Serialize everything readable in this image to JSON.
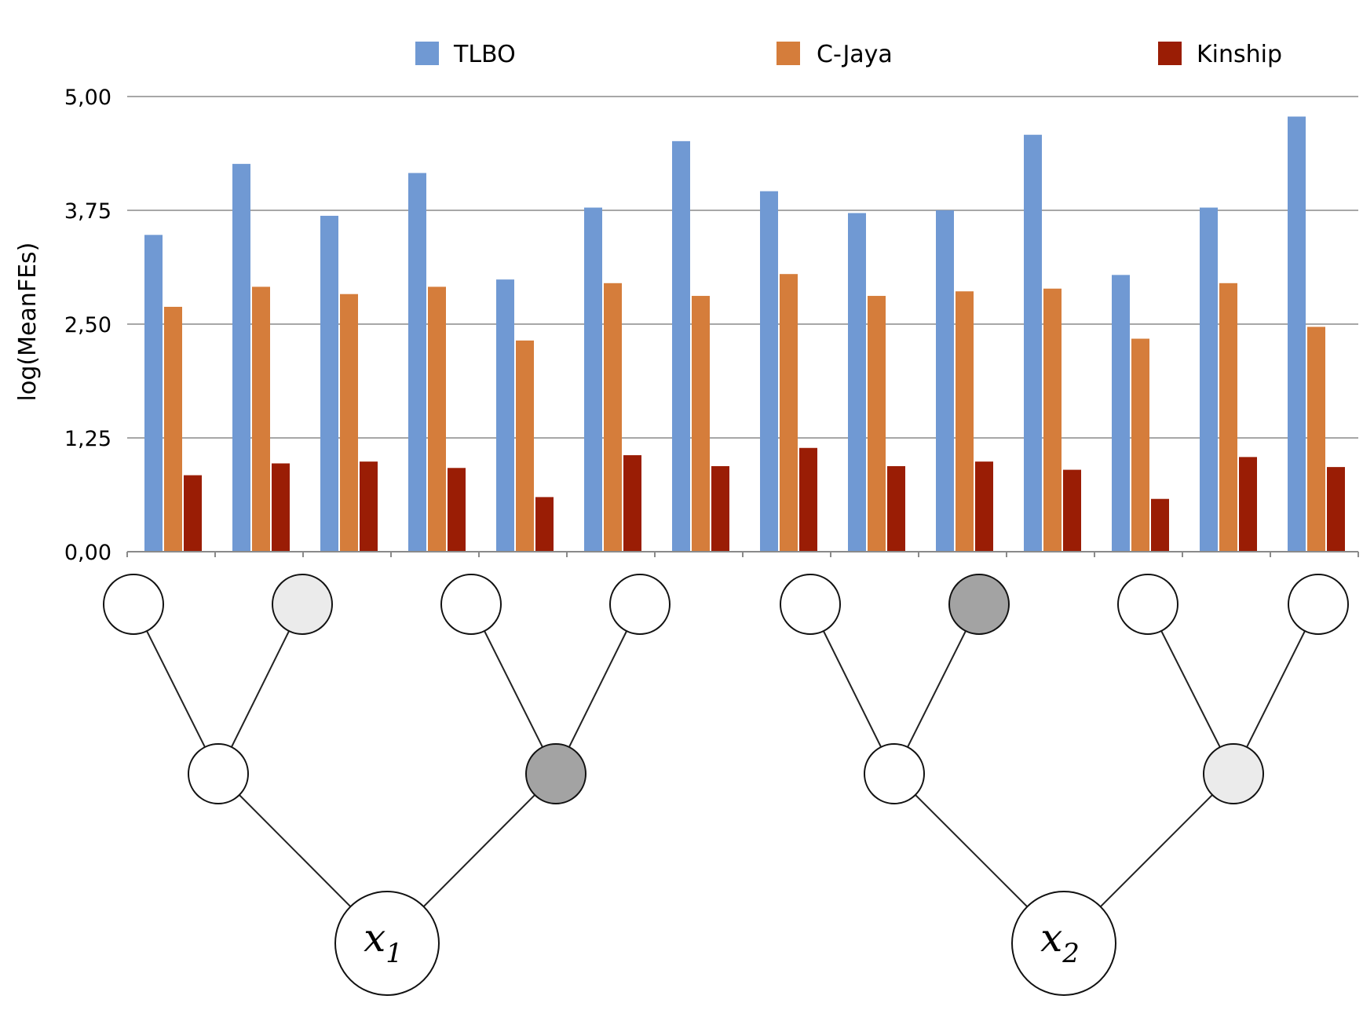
{
  "chart_data": {
    "type": "bar",
    "ylabel": "log(MeanFEs)",
    "ylim": [
      0,
      5
    ],
    "yticks": [
      "0,00",
      "1,25",
      "2,50",
      "3,75",
      "5,00"
    ],
    "ytick_values": [
      0,
      1.25,
      2.5,
      3.75,
      5
    ],
    "grid": "horizontal",
    "legend_position": "top",
    "categories_count": 14,
    "series": [
      {
        "name": "TLBO",
        "color": "#7099d3",
        "values": [
          3.48,
          4.26,
          3.69,
          4.16,
          2.99,
          3.78,
          4.51,
          3.96,
          3.72,
          3.75,
          4.58,
          3.04,
          3.78,
          4.78
        ]
      },
      {
        "name": "C-Jaya",
        "color": "#d57d3b",
        "values": [
          2.69,
          2.91,
          2.83,
          2.91,
          2.32,
          2.95,
          2.81,
          3.05,
          2.81,
          2.86,
          2.89,
          2.34,
          2.95,
          2.47
        ]
      },
      {
        "name": "Kinship",
        "color": "#9a1d05",
        "values": [
          0.84,
          0.97,
          0.99,
          0.92,
          0.6,
          1.06,
          0.94,
          1.14,
          0.94,
          0.99,
          0.9,
          0.58,
          1.04,
          0.93
        ]
      }
    ]
  },
  "diagram": {
    "roots": [
      {
        "symbol": "x",
        "subscript": "1"
      },
      {
        "symbol": "x",
        "subscript": "2"
      }
    ],
    "node_fills": {
      "white": "#ffffff",
      "light": "#ebebeb",
      "dark": "#a3a3a3"
    },
    "top_fills": [
      "white",
      "light",
      "white",
      "white",
      "white",
      "dark",
      "white",
      "white"
    ],
    "middle_fills": [
      "white",
      "dark",
      "white",
      "light"
    ]
  }
}
